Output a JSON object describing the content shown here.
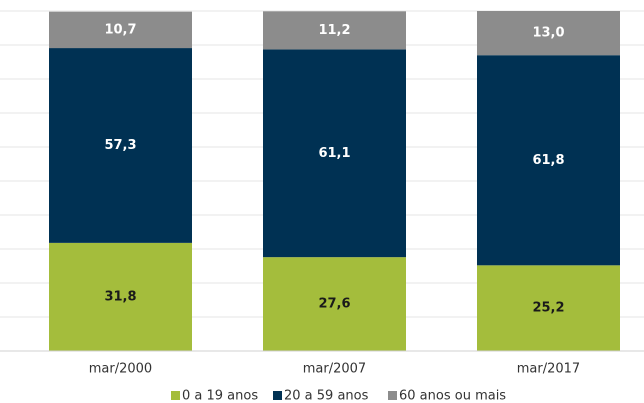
{
  "chart_data": {
    "type": "stacked_bar",
    "categories": [
      "mar/2000",
      "mar/2007",
      "mar/2017"
    ],
    "series": [
      {
        "name": "0 a 19 anos",
        "color": "#a4bd3c",
        "values": [
          31.8,
          27.6,
          25.2
        ],
        "value_labels": [
          "31,8",
          "27,6",
          "25,2"
        ]
      },
      {
        "name": "20 a 59 anos",
        "color": "#003153",
        "values": [
          57.3,
          61.1,
          61.8
        ],
        "value_labels": [
          "57,3",
          "61,1",
          "61,8"
        ]
      },
      {
        "name": "60 anos ou mais",
        "color": "#8c8c8c",
        "values": [
          10.7,
          11.2,
          13.0
        ],
        "value_labels": [
          "10,7",
          "11,2",
          "13,0"
        ]
      }
    ],
    "ylim": [
      0,
      100
    ],
    "yticks": [
      0,
      10,
      20,
      30,
      40,
      50,
      60,
      70,
      80,
      90,
      100
    ],
    "grid": true,
    "legend": "bottom"
  }
}
